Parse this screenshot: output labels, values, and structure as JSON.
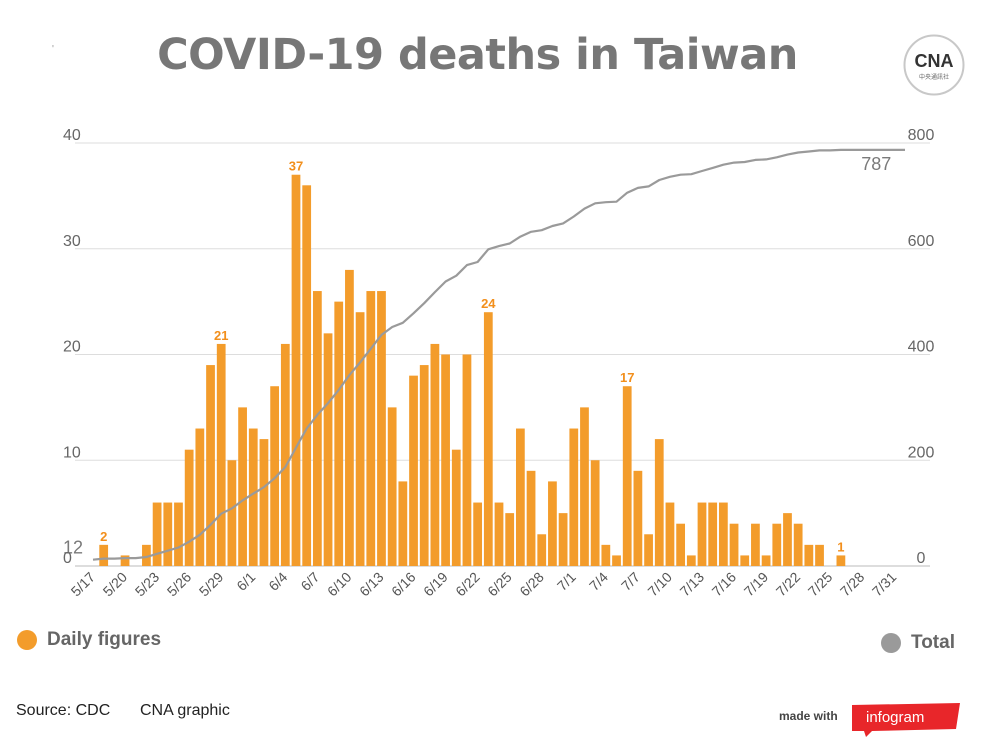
{
  "title": "COVID-19 deaths in Taiwan",
  "logo": {
    "text": "CNA",
    "subtext": "中央通訊社"
  },
  "legend": {
    "daily": "Daily figures",
    "total": "Total"
  },
  "footer": {
    "source": "Source: CDC",
    "credit": "CNA graphic",
    "made_with": "made with",
    "brand": "infogram"
  },
  "colors": {
    "bars": "#f39c2b",
    "line": "#9a9a9a",
    "grid": "#dddddd",
    "bar_label": "#f28f1c"
  },
  "chart_data": {
    "type": "bar",
    "title": "COVID-19 deaths in Taiwan",
    "x_start": "5/17",
    "x_tick_labels": [
      "5/17",
      "5/20",
      "5/23",
      "5/26",
      "5/29",
      "6/1",
      "6/4",
      "6/7",
      "6/10",
      "6/13",
      "6/16",
      "6/19",
      "6/22",
      "6/25",
      "6/28",
      "7/1",
      "7/4",
      "7/7",
      "7/10",
      "7/13",
      "7/16",
      "7/19",
      "7/22",
      "7/25",
      "7/28",
      "7/31"
    ],
    "y_left_ticks": [
      0,
      10,
      20,
      30,
      40
    ],
    "y_right_ticks": [
      0,
      200,
      400,
      600,
      800
    ],
    "ylim_left": [
      0,
      40
    ],
    "ylim_right": [
      0,
      800
    ],
    "grid": true,
    "series": [
      {
        "name": "Daily figures",
        "type": "bar",
        "axis": "left",
        "values": [
          0,
          2,
          0,
          1,
          0,
          2,
          6,
          6,
          6,
          11,
          13,
          19,
          21,
          10,
          15,
          13,
          12,
          17,
          21,
          37,
          36,
          26,
          22,
          25,
          28,
          24,
          26,
          26,
          15,
          8,
          18,
          19,
          21,
          20,
          11,
          20,
          6,
          24,
          6,
          5,
          13,
          9,
          3,
          8,
          5,
          13,
          15,
          10,
          2,
          1,
          17,
          9,
          3,
          12,
          6,
          4,
          1,
          6,
          6,
          6,
          4,
          1,
          4,
          1,
          4,
          5,
          4,
          2,
          2,
          0,
          1,
          0,
          0,
          0,
          0,
          0,
          0
        ]
      },
      {
        "name": "Total",
        "type": "line",
        "axis": "right",
        "values": [
          12,
          14,
          14,
          15,
          15,
          17,
          23,
          29,
          35,
          46,
          59,
          78,
          99,
          109,
          124,
          137,
          149,
          166,
          187,
          224,
          260,
          286,
          308,
          333,
          361,
          385,
          411,
          437,
          452,
          460,
          478,
          497,
          518,
          538,
          549,
          569,
          575,
          599,
          605,
          610,
          623,
          632,
          635,
          643,
          648,
          661,
          676,
          686,
          688,
          689,
          706,
          715,
          718,
          730,
          736,
          740,
          741,
          747,
          753,
          759,
          763,
          764,
          768,
          769,
          773,
          778,
          782,
          784,
          786,
          786,
          787,
          787,
          787,
          787,
          787,
          787,
          787
        ]
      }
    ],
    "annotations": [
      {
        "series": "Daily figures",
        "date": "5/18",
        "label": "2"
      },
      {
        "series": "Daily figures",
        "date": "5/29",
        "label": "21"
      },
      {
        "series": "Daily figures",
        "date": "6/5",
        "label": "37"
      },
      {
        "series": "Daily figures",
        "date": "6/23",
        "label": "24"
      },
      {
        "series": "Daily figures",
        "date": "7/6",
        "label": "17"
      },
      {
        "series": "Daily figures",
        "date": "7/26",
        "label": "1"
      },
      {
        "series": "Total",
        "date": "5/17",
        "label": "12"
      },
      {
        "series": "Total",
        "date": "7/31",
        "label": "787"
      }
    ]
  }
}
